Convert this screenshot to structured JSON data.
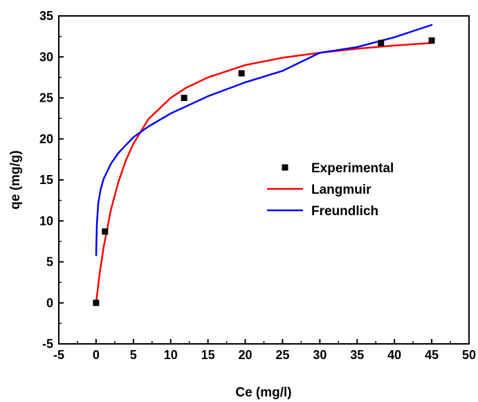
{
  "chart_data": {
    "type": "scatter",
    "title": "",
    "xlabel": "Ce (mg/l)",
    "ylabel": "qe (mg/g)",
    "xlim": [
      -5,
      50
    ],
    "ylim": [
      -5,
      35
    ],
    "x_ticks": [
      "-5",
      "0",
      "5",
      "10",
      "15",
      "20",
      "25",
      "30",
      "35",
      "40",
      "45",
      "50"
    ],
    "y_ticks": [
      "-5",
      "0",
      "5",
      "10",
      "15",
      "20",
      "25",
      "30",
      "35"
    ],
    "grid": false,
    "legend_position": "center-right",
    "series": [
      {
        "name": "Experimental",
        "kind": "scatter",
        "marker": "square",
        "color": "#000000",
        "x": [
          0,
          1.2,
          11.8,
          19.5,
          38.2,
          45.0
        ],
        "y": [
          0,
          8.7,
          25.0,
          28.0,
          31.7,
          32.0
        ]
      },
      {
        "name": "Langmuir",
        "kind": "line",
        "color": "#ff0000",
        "x": [
          0,
          0.5,
          1,
          2,
          3,
          4,
          5,
          7,
          10,
          12,
          15,
          20,
          25,
          30,
          35,
          40,
          45
        ],
        "y": [
          0,
          3.72,
          6.77,
          11.4,
          14.8,
          17.4,
          19.4,
          22.4,
          25.0,
          26.2,
          27.5,
          29.0,
          29.9,
          30.5,
          31.0,
          31.4,
          31.7
        ]
      },
      {
        "name": "Freundlich",
        "kind": "line",
        "color": "#0000ff",
        "x": [
          0.01,
          0.1,
          0.3,
          0.6,
          1,
          2,
          3,
          5,
          7,
          10,
          15,
          20,
          25,
          30,
          35,
          40,
          45
        ],
        "y": [
          5.8,
          9.6,
          12.2,
          13.8,
          15.1,
          17.0,
          18.3,
          20.2,
          21.5,
          23.1,
          25.2,
          26.9,
          28.3,
          30.5,
          31.2,
          32.4,
          33.9
        ]
      }
    ]
  }
}
